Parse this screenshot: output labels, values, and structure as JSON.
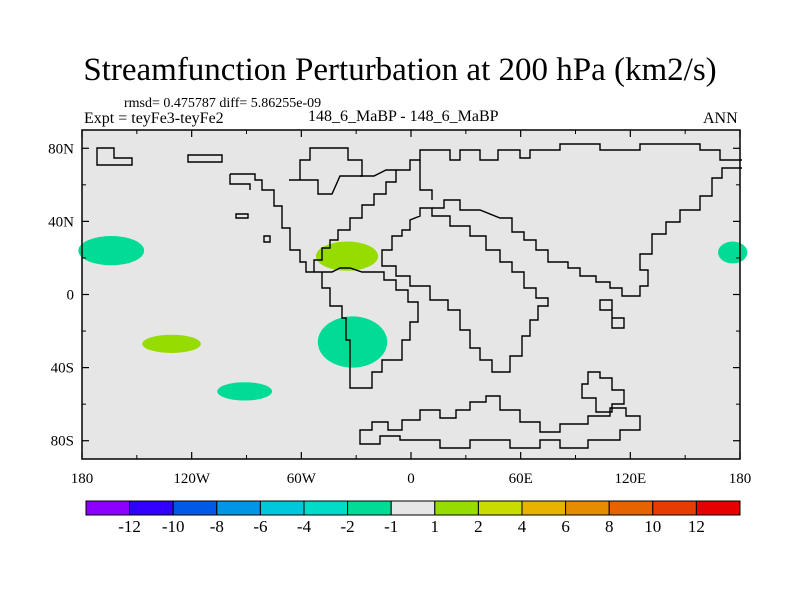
{
  "title": "Streamfunction Perturbation at 200 hPa (km2/s)",
  "stats": {
    "rmsd_line": "rmsd= 0.475787 diff= 5.86255e-09"
  },
  "left_label": "Expt = teyFe3-teyFe2",
  "center_label": "148_6_MaBP - 148_6_MaBP",
  "right_label": "ANN",
  "map_data": {
    "projection": "cylindrical-equidistant",
    "lon_range": [
      -180,
      180
    ],
    "lat_range": [
      -90,
      90
    ],
    "x_ticks": [
      {
        "lon": -180,
        "label": "180"
      },
      {
        "lon": -120,
        "label": "120W"
      },
      {
        "lon": -60,
        "label": "60W"
      },
      {
        "lon": 0,
        "label": "0"
      },
      {
        "lon": 60,
        "label": "60E"
      },
      {
        "lon": 120,
        "label": "120E"
      },
      {
        "lon": 180,
        "label": "180"
      }
    ],
    "y_ticks": [
      {
        "lat": 80,
        "label": "80N"
      },
      {
        "lat": 40,
        "label": "40N"
      },
      {
        "lat": 0,
        "label": "0"
      },
      {
        "lat": -40,
        "label": "40S"
      },
      {
        "lat": -80,
        "label": "80S"
      }
    ],
    "anomalies": [
      {
        "name": "north-pacific-west-negative",
        "lon": -164,
        "lat": 24,
        "rlon": 18,
        "rlat": 8,
        "color": "#00dc96"
      },
      {
        "name": "north-pacific-east-negative",
        "lon": 176,
        "lat": 23,
        "rlon": 8,
        "rlat": 6,
        "color": "#00dc96"
      },
      {
        "name": "south-pacific-positive",
        "lon": -131,
        "lat": -27,
        "rlon": 16,
        "rlat": 5,
        "color": "#96dc00"
      },
      {
        "name": "south-pacific-negative",
        "lon": -91,
        "lat": -53,
        "rlon": 15,
        "rlat": 5,
        "color": "#00dc96"
      },
      {
        "name": "north-atlantic-positive",
        "lon": -35,
        "lat": 21,
        "rlon": 17,
        "rlat": 8,
        "color": "#96dc00"
      },
      {
        "name": "south-atlantic-negative",
        "lon": -32,
        "lat": -26,
        "rlon": 19,
        "rlat": 14,
        "color": "#00dc96"
      }
    ]
  },
  "colorbar": {
    "colors": [
      "#8c00ff",
      "#3200ff",
      "#005ae6",
      "#0096e6",
      "#00c8dc",
      "#00dcc8",
      "#00dc96",
      "#e6e6e6",
      "#96dc00",
      "#c8dc00",
      "#e6b400",
      "#e68c00",
      "#e66400",
      "#e63c00",
      "#e60000"
    ],
    "labels": [
      "-12",
      "-10",
      "-8",
      "-6",
      "-4",
      "-2",
      "-1",
      "1",
      "2",
      "4",
      "6",
      "8",
      "10",
      "12"
    ]
  }
}
